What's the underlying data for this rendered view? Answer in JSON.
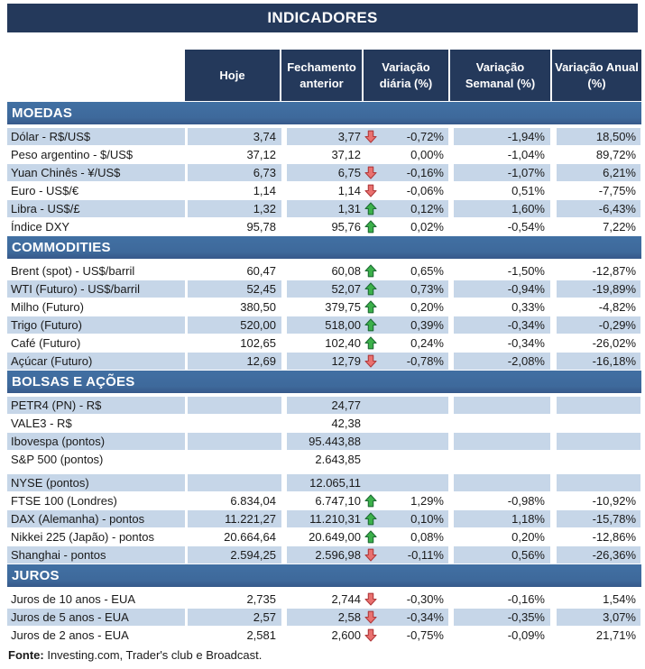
{
  "title": "INDICADORES",
  "columns": {
    "hoje": "Hoje",
    "fechamento": "Fechamento anterior",
    "var_diaria": "Variação diária (%)",
    "var_semanal": "Variação Semanal (%)",
    "var_anual": "Variação Anual (%)"
  },
  "colors": {
    "navy": "#24395b",
    "section_band": "#3e699b",
    "row_stripe": "#c6d6e8",
    "arrow_up_fill": "#3cb14a",
    "arrow_up_border": "#1e6b35",
    "arrow_down_fill": "#e9716f",
    "arrow_down_border": "#b0393b"
  },
  "icons": {
    "up": "arrow-up-icon",
    "down": "arrow-down-icon"
  },
  "sections": [
    {
      "name": "MOEDAS",
      "stripe_first": true,
      "rows": [
        {
          "label": "Dólar - R$/US$",
          "hoje": "3,74",
          "fech": "3,77",
          "arrow": "down",
          "var_d": "-0,72%",
          "var_s": "-1,94%",
          "var_a": "18,50%"
        },
        {
          "label": "Peso argentino - $/US$",
          "hoje": "37,12",
          "fech": "37,12",
          "arrow": "",
          "var_d": "0,00%",
          "var_s": "-1,04%",
          "var_a": "89,72%"
        },
        {
          "label": "Yuan Chinês - ¥/US$",
          "hoje": "6,73",
          "fech": "6,75",
          "arrow": "down",
          "var_d": "-0,16%",
          "var_s": "-1,07%",
          "var_a": "6,21%"
        },
        {
          "label": "Euro - US$/€",
          "hoje": "1,14",
          "fech": "1,14",
          "arrow": "down",
          "var_d": "-0,06%",
          "var_s": "0,51%",
          "var_a": "-7,75%"
        },
        {
          "label": "Libra - US$/£",
          "hoje": "1,32",
          "fech": "1,31",
          "arrow": "up",
          "var_d": "0,12%",
          "var_s": "1,60%",
          "var_a": "-6,43%"
        },
        {
          "label": "Índice DXY",
          "hoje": "95,78",
          "fech": "95,76",
          "arrow": "up",
          "var_d": "0,02%",
          "var_s": "-0,54%",
          "var_a": "7,22%"
        }
      ]
    },
    {
      "name": "COMMODITIES",
      "stripe_first": false,
      "rows": [
        {
          "label": "Brent (spot) - US$/barril",
          "hoje": "60,47",
          "fech": "60,08",
          "arrow": "up",
          "var_d": "0,65%",
          "var_s": "-1,50%",
          "var_a": "-12,87%"
        },
        {
          "label": "WTI (Futuro) - US$/barril",
          "hoje": "52,45",
          "fech": "52,07",
          "arrow": "up",
          "var_d": "0,73%",
          "var_s": "-0,94%",
          "var_a": "-19,89%"
        },
        {
          "label": "Milho (Futuro)",
          "hoje": "380,50",
          "fech": "379,75",
          "arrow": "up",
          "var_d": "0,20%",
          "var_s": "0,33%",
          "var_a": "-4,82%"
        },
        {
          "label": "Trigo (Futuro)",
          "hoje": "520,00",
          "fech": "518,00",
          "arrow": "up",
          "var_d": "0,39%",
          "var_s": "-0,34%",
          "var_a": "-0,29%"
        },
        {
          "label": "Café (Futuro)",
          "hoje": "102,65",
          "fech": "102,40",
          "arrow": "up",
          "var_d": "0,24%",
          "var_s": "-0,34%",
          "var_a": "-26,02%"
        },
        {
          "label": "Açúcar (Futuro)",
          "hoje": "12,69",
          "fech": "12,79",
          "arrow": "down",
          "var_d": "-0,78%",
          "var_s": "-2,08%",
          "var_a": "-16,18%"
        }
      ]
    },
    {
      "name": "BOLSAS E AÇÕES",
      "stripe_first": true,
      "rows": [
        {
          "label": "PETR4 (PN) - R$",
          "hoje": "",
          "fech": "24,77",
          "arrow": "",
          "var_d": "",
          "var_s": "",
          "var_a": ""
        },
        {
          "label": "VALE3 - R$",
          "hoje": "",
          "fech": "42,38",
          "arrow": "",
          "var_d": "",
          "var_s": "",
          "var_a": ""
        },
        {
          "label": "Ibovespa (pontos)",
          "hoje": "",
          "fech": "95.443,88",
          "arrow": "",
          "var_d": "",
          "var_s": "",
          "var_a": ""
        },
        {
          "label": "S&P 500 (pontos)",
          "hoje": "",
          "fech": "2.643,85",
          "arrow": "",
          "var_d": "",
          "var_s": "",
          "var_a": ""
        },
        {
          "label": "NYSE (pontos)",
          "hoje": "",
          "fech": "12.065,11",
          "arrow": "",
          "var_d": "",
          "var_s": "",
          "var_a": "",
          "gap_before": true
        },
        {
          "label": "FTSE 100 (Londres)",
          "hoje": "6.834,04",
          "fech": "6.747,10",
          "arrow": "up",
          "var_d": "1,29%",
          "var_s": "-0,98%",
          "var_a": "-10,92%"
        },
        {
          "label": "DAX (Alemanha) - pontos",
          "hoje": "11.221,27",
          "fech": "11.210,31",
          "arrow": "up",
          "var_d": "0,10%",
          "var_s": "1,18%",
          "var_a": "-15,78%"
        },
        {
          "label": "Nikkei 225 (Japão) - pontos",
          "hoje": "20.664,64",
          "fech": "20.649,00",
          "arrow": "up",
          "var_d": "0,08%",
          "var_s": "0,20%",
          "var_a": "-12,86%"
        },
        {
          "label": "Shanghai - pontos",
          "hoje": "2.594,25",
          "fech": "2.596,98",
          "arrow": "down",
          "var_d": "-0,11%",
          "var_s": "0,56%",
          "var_a": "-26,36%"
        }
      ]
    },
    {
      "name": "JUROS",
      "stripe_first": false,
      "rows": [
        {
          "label": "Juros de 10 anos - EUA",
          "hoje": "2,735",
          "fech": "2,744",
          "arrow": "down",
          "var_d": "-0,30%",
          "var_s": "-0,16%",
          "var_a": "1,54%"
        },
        {
          "label": "Juros de 5 anos - EUA",
          "hoje": "2,57",
          "fech": "2,58",
          "arrow": "down",
          "var_d": "-0,34%",
          "var_s": "-0,35%",
          "var_a": "3,07%"
        },
        {
          "label": "Juros de 2 anos - EUA",
          "hoje": "2,581",
          "fech": "2,600",
          "arrow": "down",
          "var_d": "-0,75%",
          "var_s": "-0,09%",
          "var_a": "21,71%"
        }
      ]
    }
  ],
  "footer": {
    "label": "Fonte:",
    "text": " Investing.com, Trader's club e Broadcast."
  }
}
